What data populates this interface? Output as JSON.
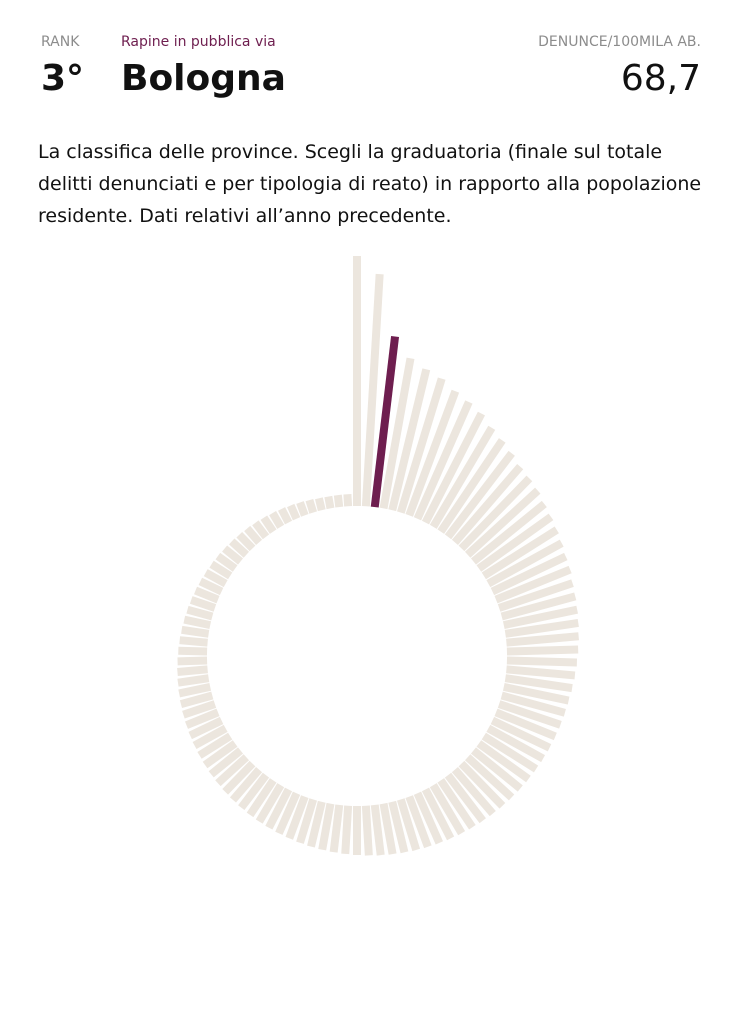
{
  "header": {
    "rank_label": "RANK",
    "category": "Rapine in pubblica via",
    "metric_label": "DENUNCE/100MILA AB.",
    "rank": "3°",
    "city": "Bologna",
    "value": "68,7"
  },
  "description": "La classifica delle province. Scegli la graduatoria (finale sul totale delitti denunciati e per tipologia di reato) in rapporto alla popolazione residente. Dati relativi all’anno precedente.",
  "colors": {
    "bar": "#ece6de",
    "highlight": "#6e1e4f",
    "category": "#6e1e4f",
    "muted_label": "#8c8c8c"
  },
  "chart_data": {
    "type": "bar",
    "layout": "radial",
    "highlight_rank": 3,
    "ranks": [
      1,
      2,
      3,
      4,
      5,
      6,
      7,
      8,
      9,
      10,
      11,
      12,
      13,
      14,
      15,
      16,
      17,
      18,
      19,
      20,
      21,
      22,
      23,
      24,
      25,
      26,
      27,
      28,
      29,
      30,
      31,
      32,
      33,
      34,
      35,
      36,
      37,
      38,
      39,
      40,
      41,
      42,
      43,
      44,
      45,
      46,
      47,
      48,
      49,
      50,
      51,
      52,
      53,
      54,
      55,
      56,
      57,
      58,
      59,
      60,
      61,
      62,
      63,
      64,
      65,
      66,
      67,
      68,
      69,
      70,
      71,
      72,
      73,
      74,
      75,
      76,
      77,
      78,
      79,
      80,
      81,
      82,
      83,
      84,
      85,
      86,
      87,
      88,
      89,
      90,
      91,
      92,
      93,
      94,
      95,
      96,
      97,
      98,
      99,
      100,
      101,
      102,
      103,
      104,
      105,
      106
    ],
    "values": [
      100.0,
      93.0,
      68.7,
      61.0,
      58.0,
      56.0,
      53.0,
      51.0,
      49.0,
      46.0,
      44.0,
      42.0,
      40.0,
      39.0,
      38.0,
      36.5,
      35.5,
      34.5,
      33.5,
      32.5,
      32.0,
      31.0,
      30.5,
      30.0,
      29.5,
      29.0,
      28.5,
      28.0,
      27.5,
      27.0,
      26.5,
      26.2,
      25.9,
      25.6,
      25.3,
      25.0,
      24.7,
      24.4,
      24.1,
      23.8,
      23.5,
      23.2,
      22.9,
      22.6,
      22.3,
      22.0,
      21.7,
      21.4,
      21.1,
      20.8,
      20.5,
      20.2,
      19.9,
      19.6,
      19.3,
      19.0,
      18.7,
      18.4,
      18.1,
      17.8,
      17.5,
      17.2,
      16.9,
      16.6,
      16.3,
      16.0,
      15.7,
      15.4,
      15.1,
      14.8,
      14.5,
      14.2,
      13.9,
      13.6,
      13.3,
      13.0,
      12.7,
      12.4,
      12.1,
      11.8,
      11.5,
      11.2,
      10.9,
      10.6,
      10.3,
      10.0,
      9.7,
      9.4,
      9.1,
      8.8,
      8.5,
      8.2,
      7.9,
      7.6,
      7.3,
      7.0,
      6.7,
      6.4,
      6.1,
      5.8,
      5.5,
      5.2,
      4.9,
      4.6,
      4.3,
      4.0
    ]
  }
}
